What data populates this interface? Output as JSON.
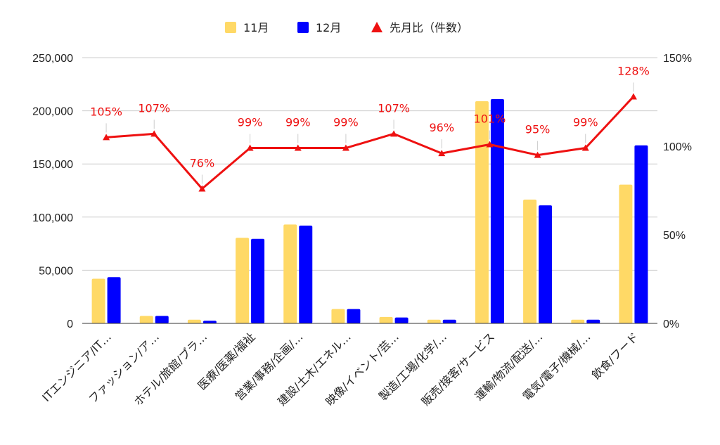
{
  "chart_data": {
    "type": "bar",
    "categories": [
      "ITエンジニア/IT…",
      "ファッション/ア…",
      "ホテル/旅館/ブラ…",
      "医療/医薬/福祉",
      "営業/事務/企画/…",
      "建設/土木/エネル…",
      "映像/イベント/芸…",
      "製造/工場/化学/…",
      "販売/接客/サービス",
      "運輸/物流/配送/…",
      "電気/電子/機械/…",
      "飲食/フード"
    ],
    "series": [
      {
        "name": "11月",
        "kind": "bar",
        "color": "#ffd966",
        "values": [
          42000,
          7000,
          3500,
          80500,
          93000,
          13500,
          6000,
          3500,
          209000,
          116500,
          3500,
          130500
        ]
      },
      {
        "name": "12月",
        "kind": "bar",
        "color": "#0000ff",
        "values": [
          43500,
          7000,
          2500,
          79500,
          92000,
          13500,
          5500,
          3500,
          211000,
          111000,
          3500,
          167500
        ]
      },
      {
        "name": "先月比（件数）",
        "kind": "line",
        "axis": "right",
        "color": "#ee1111",
        "marker": "triangle",
        "values": [
          105,
          107,
          76,
          99,
          99,
          99,
          107,
          96,
          101,
          95,
          99,
          128
        ],
        "labels": [
          "105%",
          "107%",
          "76%",
          "99%",
          "99%",
          "99%",
          "107%",
          "96%",
          "101%",
          "95%",
          "99%",
          "128%"
        ]
      }
    ],
    "y_left": {
      "min": 0,
      "max": 250000,
      "ticks": [
        0,
        50000,
        100000,
        150000,
        200000,
        250000
      ],
      "tick_labels": [
        "0",
        "50,000",
        "100,000",
        "150,000",
        "200,000",
        "250,000"
      ]
    },
    "y_right": {
      "min": 0,
      "max": 150,
      "ticks": [
        0,
        50,
        100,
        150
      ],
      "tick_labels": [
        "0%",
        "50%",
        "100%",
        "150%"
      ]
    },
    "legend": {
      "position": "top-center",
      "items": [
        "11月",
        "12月",
        "先月比（件数）"
      ]
    },
    "grid": true
  }
}
